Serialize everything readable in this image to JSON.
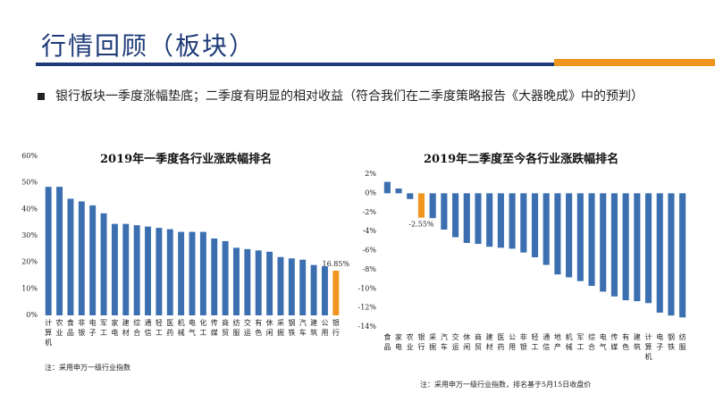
{
  "header": {
    "title": "行情回顾（板块）"
  },
  "bullet": "银行板块一季度涨幅垫底；二季度有明显的相对收益（符合我们在二季度策略报告《大器晚成》中的预判）",
  "chart_data": [
    {
      "type": "bar",
      "title": "2019年一季度各行业涨跌幅排名",
      "color": "#3b6fb0",
      "highlight_color": "#f0961e",
      "highlight_index": 26,
      "categories": [
        "计算机",
        "农业",
        "食品",
        "非银",
        "电子",
        "军工",
        "家电",
        "建材",
        "综合",
        "通信",
        "轻工",
        "医药",
        "机械",
        "电气",
        "化工",
        "传媒",
        "商贸",
        "纺服",
        "交运",
        "有色",
        "休闲",
        "采掘",
        "钢铁",
        "汽车",
        "建筑",
        "公用",
        "银行"
      ],
      "values": [
        48.5,
        48.5,
        44,
        43,
        41.5,
        38.5,
        34.5,
        34.5,
        34,
        33.5,
        33,
        32.5,
        31.5,
        31.5,
        31.5,
        29,
        28,
        25.5,
        25,
        24.5,
        24,
        22,
        21.5,
        21,
        19,
        18.5,
        16.85
      ],
      "value_labels": [
        null,
        null,
        null,
        null,
        null,
        null,
        null,
        null,
        null,
        null,
        null,
        null,
        null,
        null,
        null,
        null,
        null,
        null,
        null,
        null,
        null,
        null,
        null,
        null,
        null,
        null,
        "16.85%"
      ],
      "ylim": [
        0,
        60
      ],
      "yticks": [
        {
          "value": 0,
          "label": "0%"
        },
        {
          "value": 10,
          "label": "10%"
        },
        {
          "value": 20,
          "label": "20%"
        },
        {
          "value": 30,
          "label": "30%"
        },
        {
          "value": 40,
          "label": "40%"
        },
        {
          "value": 50,
          "label": "50%"
        },
        {
          "value": 60,
          "label": "60%"
        }
      ],
      "note": "注：采用申万一级行业指数"
    },
    {
      "type": "bar",
      "title": "2019年二季度至今各行业涨跌幅排名",
      "color": "#3b6fb0",
      "highlight_color": "#f0961e",
      "highlight_index": 3,
      "categories": [
        "食品",
        "家电",
        "农业",
        "银行",
        "采掘",
        "汽车",
        "交运",
        "休闲",
        "商贸",
        "建材",
        "医药",
        "公用",
        "非银",
        "轻工",
        "通信",
        "地产",
        "机械",
        "军工",
        "综合",
        "电气",
        "传媒",
        "有色",
        "建筑",
        "计算机",
        "电子",
        "钢铁",
        "纺服"
      ],
      "values": [
        1.2,
        0.5,
        -0.6,
        -2.55,
        -2.6,
        -3.8,
        -4.6,
        -5.2,
        -5.3,
        -5.6,
        -5.7,
        -5.8,
        -6.2,
        -6.7,
        -7.5,
        -8.5,
        -8.8,
        -9.2,
        -9.7,
        -10.3,
        -10.8,
        -11.2,
        -11.3,
        -11.5,
        -12.5,
        -12.8,
        -13.0
      ],
      "value_labels": [
        null,
        null,
        null,
        "-2.55%",
        null,
        null,
        null,
        null,
        null,
        null,
        null,
        null,
        null,
        null,
        null,
        null,
        null,
        null,
        null,
        null,
        null,
        null,
        null,
        null,
        null,
        null,
        null
      ],
      "ylim": [
        -14,
        2
      ],
      "yticks": [
        {
          "value": -14,
          "label": "-14%"
        },
        {
          "value": -12,
          "label": "-12%"
        },
        {
          "value": -10,
          "label": "-10%"
        },
        {
          "value": -8,
          "label": "-8%"
        },
        {
          "value": -6,
          "label": "-6%"
        },
        {
          "value": -4,
          "label": "-4%"
        },
        {
          "value": -2,
          "label": "-2%"
        },
        {
          "value": 0,
          "label": "0%"
        },
        {
          "value": 2,
          "label": "2%"
        }
      ],
      "note": "注：采用申万一级行业指数，排名基于5月15日收盘价"
    }
  ]
}
